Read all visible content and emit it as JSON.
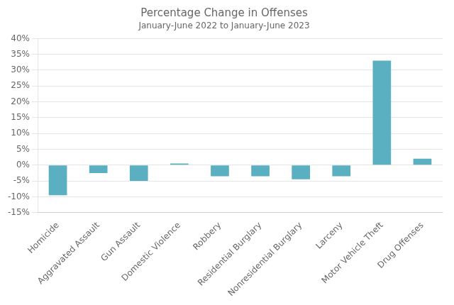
{
  "chart_data": {
    "type": "bar",
    "title": "Percentage Change in Offenses",
    "subtitle": "January-June 2022 to January-June 2023",
    "categories": [
      "Homicide",
      "Aggravated Assault",
      "Gun Assault",
      "Domestic Violence",
      "Robbery",
      "Residential Burglary",
      "Nonresidential Burglary",
      "Larceny",
      "Motor Vehicle Theft",
      "Drug Offenses"
    ],
    "values": [
      -9.5,
      -2.5,
      -5.0,
      0.5,
      -3.5,
      -3.5,
      -4.5,
      -3.5,
      33.0,
      2.0
    ],
    "color": "#5aafc0",
    "ylim": [
      -15,
      40
    ],
    "yticks": [
      {
        "value": -15,
        "label": "-15%"
      },
      {
        "value": -10,
        "label": "-10%"
      },
      {
        "value": -5,
        "label": "-5%"
      },
      {
        "value": 0,
        "label": "0%"
      },
      {
        "value": 5,
        "label": "5%"
      },
      {
        "value": 10,
        "label": "10%"
      },
      {
        "value": 15,
        "label": "15%"
      },
      {
        "value": 20,
        "label": "20%"
      },
      {
        "value": 25,
        "label": "25%"
      },
      {
        "value": 30,
        "label": "30%"
      },
      {
        "value": 35,
        "label": "35%"
      },
      {
        "value": 40,
        "label": "40%"
      }
    ],
    "grid": true
  }
}
